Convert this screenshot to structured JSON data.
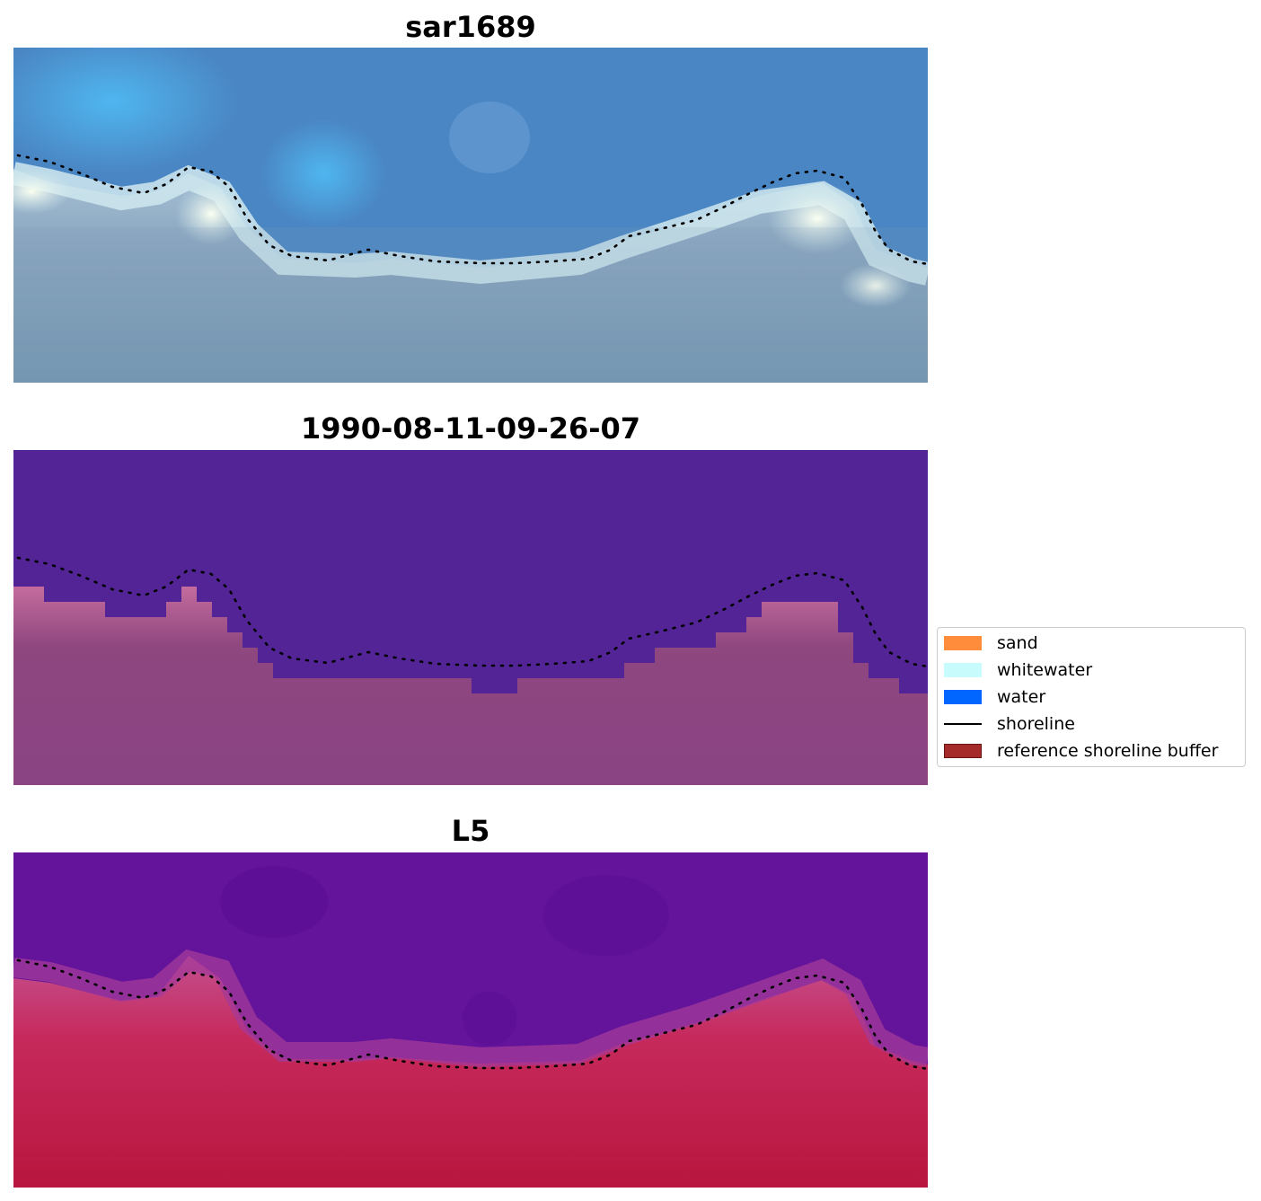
{
  "panels": [
    {
      "title": "sar1689"
    },
    {
      "title": "1990-08-11-09-26-07"
    },
    {
      "title": "L5"
    }
  ],
  "legend": {
    "items": [
      {
        "label": "sand",
        "kind": "patch",
        "color": "#ff8c3a"
      },
      {
        "label": "whitewater",
        "kind": "patch",
        "color": "#c8fcfc"
      },
      {
        "label": "water",
        "kind": "patch",
        "color": "#0066ff"
      },
      {
        "label": "shoreline",
        "kind": "line",
        "color": "#000000"
      },
      {
        "label": "reference shoreline buffer",
        "kind": "patch",
        "color": "#a52a2a"
      }
    ]
  },
  "colors": {
    "rgb_water": "#4a86c4",
    "rgb_surf": "#e8f4f4",
    "rgb_land": "#7d9db8",
    "class_water": "#532496",
    "class_land": "#8a4485",
    "index_water": "#64149a",
    "index_land": "#c01545"
  }
}
